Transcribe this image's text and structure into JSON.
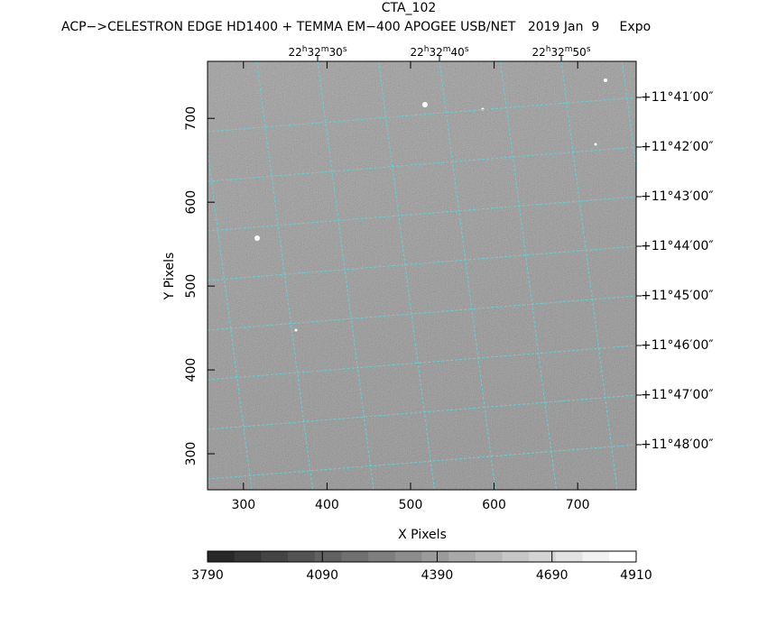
{
  "chart_data": {
    "type": "image",
    "title": "CTA_102",
    "subtitle": "ACP−>CELESTRON EDGE HD1400 + TEMMA EM−400 APOGEE USB/NET   2019 Jan  9     Expo",
    "x_label": "X Pixels",
    "y_label": "Y Pixels",
    "xlim": [
      257,
      770
    ],
    "xticks": [
      300,
      400,
      500,
      600,
      700
    ],
    "ylim": [
      257,
      768
    ],
    "yticks": [
      300,
      400,
      500,
      600,
      700
    ],
    "ra_labels": [
      [
        "22",
        "h",
        "32",
        "m",
        "30",
        "s"
      ],
      [
        "22",
        "h",
        "32",
        "m",
        "40",
        "s"
      ],
      [
        "22",
        "h",
        "32",
        "m",
        "50",
        "s"
      ]
    ],
    "dec_labels": [
      "+11°41′00″",
      "+11°42′00″",
      "+11°43′00″",
      "+11°44′00″",
      "+11°45′00″",
      "+11°46′00″",
      "+11°47′00″",
      "+11°48′00″"
    ],
    "colorbar_lim": [
      3790,
      4910
    ],
    "colorbar_ticks": [
      3790,
      4090,
      4390,
      4690,
      4910
    ],
    "grid_color": "#5fd3d8"
  }
}
